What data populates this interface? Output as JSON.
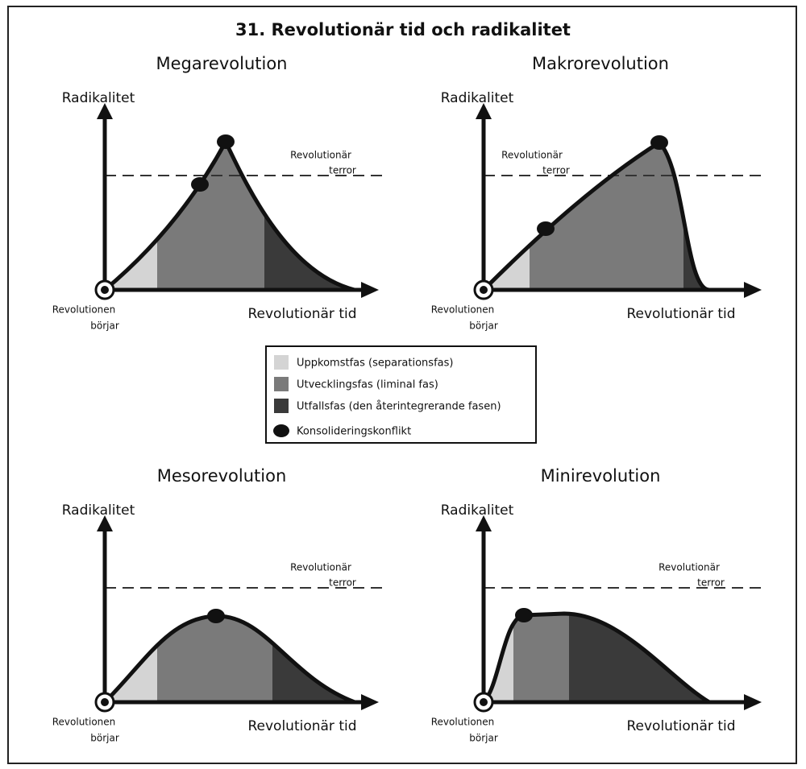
{
  "title": "31. Revolutionär tid och radikalitet",
  "panels": [
    {
      "title": "Megarevolution",
      "y_axis": "Radikalitet",
      "x_axis": "Revolutionär tid",
      "origin": [
        "Revolutionen",
        "börjar"
      ],
      "terror": [
        "Revolutionär",
        "terror"
      ]
    },
    {
      "title": "Makrorevolution",
      "y_axis": "Radikalitet",
      "x_axis": "Revolutionär tid",
      "origin": [
        "Revolutionen",
        "börjar"
      ],
      "terror": [
        "Revolutionär",
        "terror"
      ]
    },
    {
      "title": "Mesorevolution",
      "y_axis": "Radikalitet",
      "x_axis": "Revolutionär tid",
      "origin": [
        "Revolutionen",
        "börjar"
      ],
      "terror": [
        "Revolutionär",
        "terror"
      ]
    },
    {
      "title": "Minirevolution",
      "y_axis": "Radikalitet",
      "x_axis": "Revolutionär tid",
      "origin": [
        "Revolutionen",
        "börjar"
      ],
      "terror": [
        "Revolutionär",
        "terror"
      ]
    }
  ],
  "legend": [
    {
      "label": "Uppkomstfas (separationsfas)"
    },
    {
      "label": "Utvecklingsfas (liminal fas)"
    },
    {
      "label": "Utfallsfas (den återintegrerande fasen)"
    },
    {
      "label": "Konsolideringskonflikt"
    }
  ]
}
